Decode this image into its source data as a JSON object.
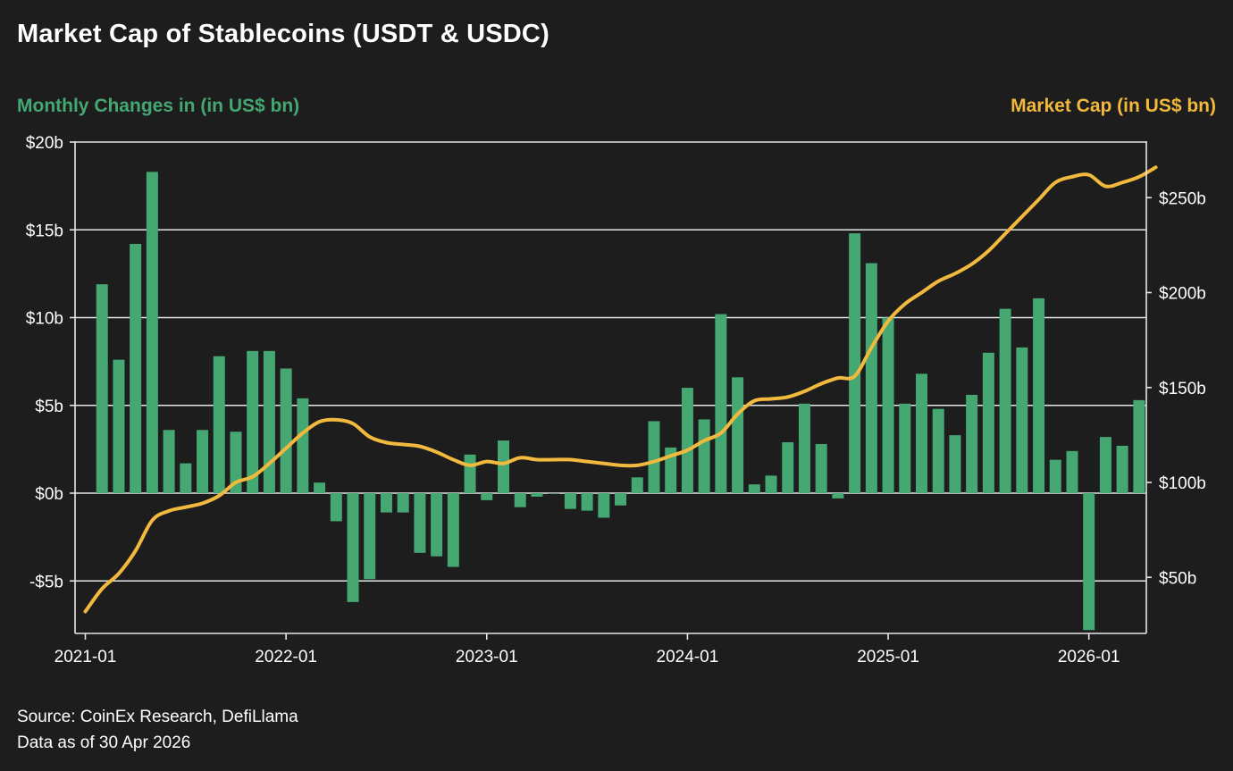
{
  "title": "Market Cap of Stablecoins (USDT & USDC)",
  "left_axis_label": "Monthly Changes in (in US$ bn)",
  "right_axis_label": "Market Cap (in US$ bn)",
  "source_line1": "Source: CoinEx Research, DefiLlama",
  "source_line2": "Data as of 30 Apr 2026",
  "colors": {
    "bars": "#45a771",
    "line": "#f1b93d",
    "left_label": "#45a771",
    "right_label": "#f1b93d",
    "grid": "#e6e6e6",
    "background": "#1d1d1d"
  },
  "chart_data": {
    "type": "bar",
    "title": "Market Cap of Stablecoins (USDT & USDC)",
    "x_tick_labels": [
      "2021-01",
      "2022-01",
      "2023-01",
      "2024-01",
      "2025-01",
      "2026-01"
    ],
    "y_left": {
      "label": "Monthly Changes in (in US$ bn)",
      "ylim": [
        -8,
        20
      ],
      "ticks": [
        -5,
        0,
        5,
        10,
        15,
        20
      ],
      "tick_labels": [
        "-$5b",
        "$0b",
        "$5b",
        "$10b",
        "$15b",
        "$20b"
      ]
    },
    "y_right": {
      "label": "Market Cap (in US$ bn)",
      "ylim": [
        22,
        285
      ],
      "ticks": [
        50,
        100,
        150,
        200,
        250
      ],
      "tick_labels": [
        "$50b",
        "$100b",
        "$150b",
        "$200b",
        "$250b"
      ]
    },
    "grid": true,
    "series": [
      {
        "name": "Monthly Changes in (in US$ bn)",
        "type": "bar",
        "axis": "left",
        "start_month": "2021-02",
        "values": [
          11.9,
          7.6,
          14.2,
          18.3,
          3.6,
          1.7,
          3.6,
          7.8,
          3.5,
          8.1,
          8.1,
          7.1,
          5.4,
          0.6,
          -1.6,
          -6.2,
          -4.9,
          -1.1,
          -1.1,
          -3.4,
          -3.6,
          -4.2,
          2.2,
          -0.4,
          3.0,
          -0.8,
          -0.2,
          0.0,
          -0.9,
          -1.0,
          -1.4,
          -0.7,
          0.9,
          4.1,
          2.6,
          6.0,
          4.2,
          10.2,
          6.6,
          0.5,
          1.0,
          2.9,
          5.1,
          2.8,
          -0.3,
          14.8,
          13.1,
          10.0,
          5.1,
          6.8,
          4.8,
          3.3,
          5.6,
          8.0,
          10.5,
          8.3,
          11.1,
          1.9,
          2.4,
          -7.8,
          3.2,
          2.7,
          5.3
        ]
      },
      {
        "name": "Market Cap (in US$ bn)",
        "type": "line",
        "axis": "right",
        "start_month": "2021-01",
        "values": [
          32,
          44,
          52,
          64,
          80,
          85,
          87,
          89,
          93,
          100,
          103,
          110,
          118,
          126,
          132,
          133,
          131,
          124,
          121,
          120,
          119,
          116,
          112,
          109,
          111,
          110,
          113,
          112,
          112,
          112,
          111,
          110,
          109,
          109,
          111,
          114,
          117,
          122,
          126,
          136,
          143,
          144,
          145,
          148,
          152,
          155,
          156,
          171,
          185,
          194,
          200,
          206,
          210,
          215,
          222,
          231,
          240,
          249,
          258,
          261,
          262,
          256,
          258,
          261,
          266
        ]
      }
    ]
  }
}
